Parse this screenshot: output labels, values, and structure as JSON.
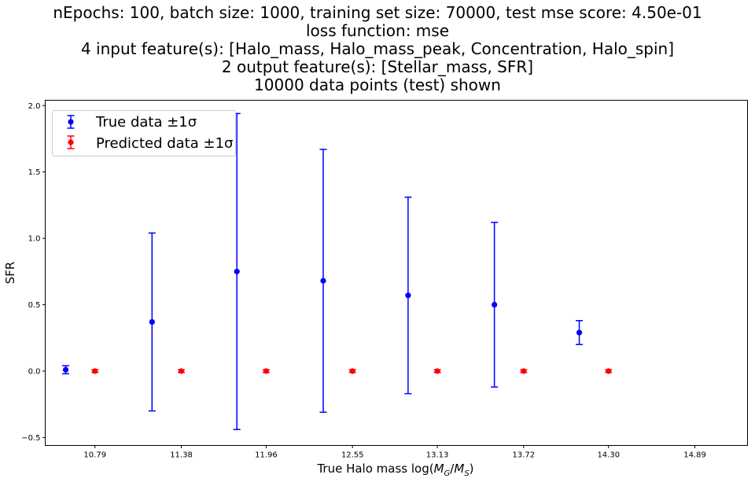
{
  "title_lines": [
    "nEpochs: 100, batch size: 1000, training set size: 70000, test mse score: 4.50e-01",
    "loss function: mse",
    "4 input feature(s): [Halo_mass, Halo_mass_peak, Concentration, Halo_spin]",
    "2 output feature(s): [Stellar_mass, SFR]",
    "10000 data points (test) shown"
  ],
  "chart_data": {
    "type": "scatter",
    "xlabel": "True Halo mass log(M_G/M_S)",
    "xlabel_parts": {
      "prefix": "True Halo mass log(",
      "M": "M",
      "G": "G",
      "slash": "/",
      "S": "S",
      "suffix": ")"
    },
    "ylabel": "SFR",
    "xlim": [
      10.45,
      15.25
    ],
    "ylim": [
      -0.56,
      2.04
    ],
    "x_ticks": [
      10.79,
      11.38,
      11.96,
      12.55,
      13.13,
      13.72,
      14.3,
      14.89
    ],
    "x_tick_labels": [
      "10.79",
      "11.38",
      "11.96",
      "12.55",
      "13.13",
      "13.72",
      "14.30",
      "14.89"
    ],
    "y_ticks": [
      -0.5,
      0.0,
      0.5,
      1.0,
      1.5,
      2.0
    ],
    "y_tick_labels": [
      "−0.5",
      "0.0",
      "0.5",
      "1.0",
      "1.5",
      "2.0"
    ],
    "grid": false,
    "legend_position": "top-left",
    "series": [
      {
        "name": "True data ±1σ",
        "color": "#0000ff",
        "x": [
          10.59,
          11.18,
          11.76,
          12.35,
          12.93,
          13.52,
          14.1
        ],
        "y": [
          0.01,
          0.37,
          0.75,
          0.68,
          0.57,
          0.5,
          0.29
        ],
        "yerr": [
          0.03,
          0.67,
          1.19,
          0.99,
          0.74,
          0.62,
          0.09
        ]
      },
      {
        "name": "Predicted data ±1σ",
        "color": "#ff0000",
        "x": [
          10.79,
          11.38,
          11.96,
          12.55,
          13.13,
          13.72,
          14.3
        ],
        "y": [
          0.0,
          0.0,
          0.0,
          0.0,
          0.0,
          0.0,
          0.0
        ],
        "yerr": [
          0.01,
          0.01,
          0.01,
          0.01,
          0.01,
          0.01,
          0.01
        ]
      }
    ]
  }
}
